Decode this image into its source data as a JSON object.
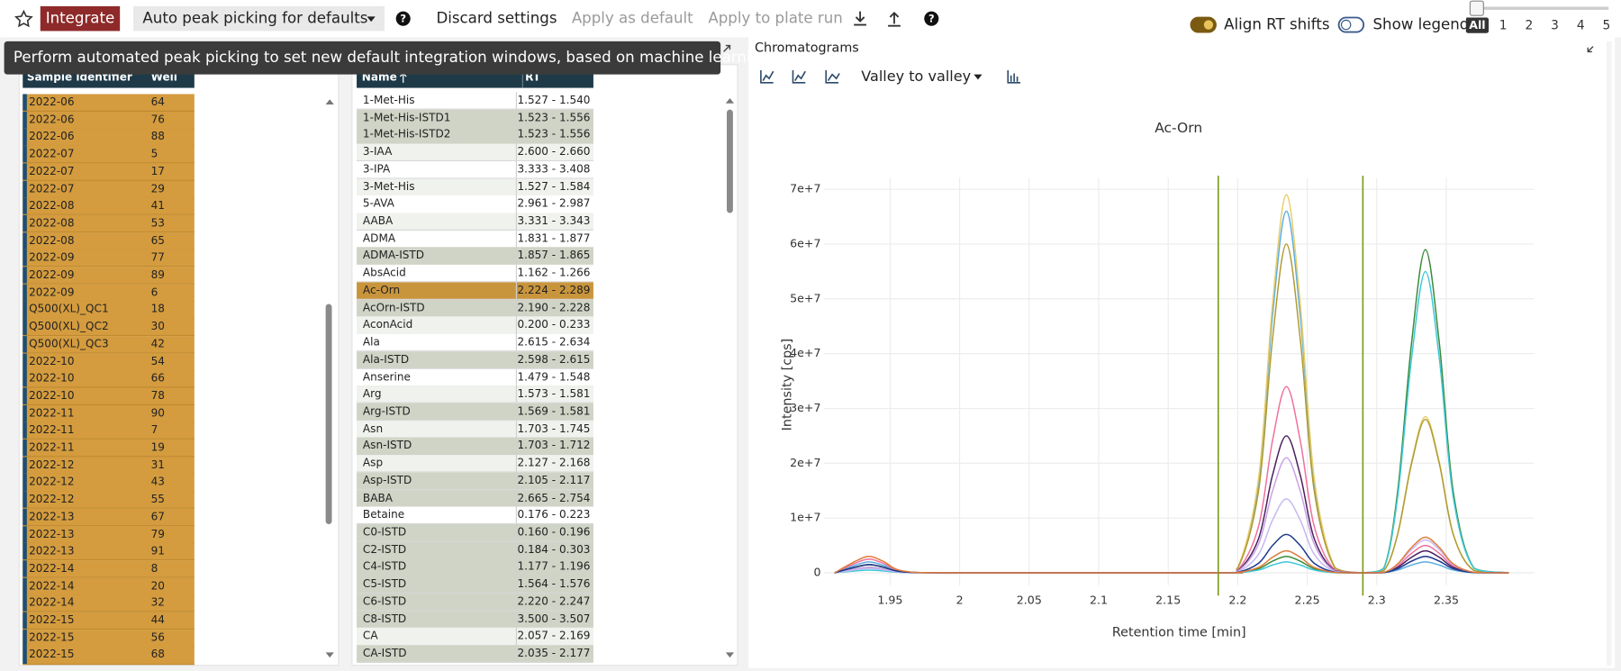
{
  "toolbar": {
    "integrate": "Integrate",
    "auto_peak_picking": "Auto peak picking for defaults",
    "discard_settings": "Discard settings",
    "apply_as_default": "Apply as default",
    "apply_to_plate_run": "Apply to plate run",
    "align_rt_shifts": {
      "label": "Align RT shifts",
      "on": true
    },
    "show_legend": {
      "label": "Show legend",
      "on": false
    },
    "range_options": [
      "All",
      "1",
      "2",
      "3",
      "4",
      "5"
    ],
    "selected_range": 0
  },
  "tooltip": "Perform automated peak picking to set new default integration windows, based on machine learning",
  "samples_table": {
    "headers": [
      "Sample identifier",
      "Well"
    ],
    "rows": [
      [
        "2022-06",
        "64"
      ],
      [
        "2022-06",
        "76"
      ],
      [
        "2022-06",
        "88"
      ],
      [
        "2022-07",
        "5"
      ],
      [
        "2022-07",
        "17"
      ],
      [
        "2022-07",
        "29"
      ],
      [
        "2022-08",
        "41"
      ],
      [
        "2022-08",
        "53"
      ],
      [
        "2022-08",
        "65"
      ],
      [
        "2022-09",
        "77"
      ],
      [
        "2022-09",
        "89"
      ],
      [
        "2022-09",
        "6"
      ],
      [
        "Q500(XL)_QC1",
        "18"
      ],
      [
        "Q500(XL)_QC2",
        "30"
      ],
      [
        "Q500(XL)_QC3",
        "42"
      ],
      [
        "2022-10",
        "54"
      ],
      [
        "2022-10",
        "66"
      ],
      [
        "2022-10",
        "78"
      ],
      [
        "2022-11",
        "90"
      ],
      [
        "2022-11",
        "7"
      ],
      [
        "2022-11",
        "19"
      ],
      [
        "2022-12",
        "31"
      ],
      [
        "2022-12",
        "43"
      ],
      [
        "2022-12",
        "55"
      ],
      [
        "2022-13",
        "67"
      ],
      [
        "2022-13",
        "79"
      ],
      [
        "2022-13",
        "91"
      ],
      [
        "2022-14",
        "8"
      ],
      [
        "2022-14",
        "20"
      ],
      [
        "2022-14",
        "32"
      ],
      [
        "2022-15",
        "44"
      ],
      [
        "2022-15",
        "56"
      ],
      [
        "2022-15",
        "68"
      ]
    ]
  },
  "compounds_table": {
    "headers": [
      "Name",
      "RT"
    ],
    "selected_row": 11,
    "rows": [
      [
        "1-Met-His",
        "1.527 - 1.540"
      ],
      [
        "1-Met-His-ISTD1",
        "1.523 - 1.556"
      ],
      [
        "1-Met-His-ISTD2",
        "1.523 - 1.556"
      ],
      [
        "3-IAA",
        "2.600 - 2.660"
      ],
      [
        "3-IPA",
        "3.333 - 3.408"
      ],
      [
        "3-Met-His",
        "1.527 - 1.584"
      ],
      [
        "5-AVA",
        "2.961 - 2.987"
      ],
      [
        "AABA",
        "3.331 - 3.343"
      ],
      [
        "ADMA",
        "1.831 - 1.877"
      ],
      [
        "ADMA-ISTD",
        "1.857 - 1.865"
      ],
      [
        "AbsAcid",
        "1.162 - 1.266"
      ],
      [
        "Ac-Orn",
        "2.224 - 2.289"
      ],
      [
        "AcOrn-ISTD",
        "2.190 - 2.228"
      ],
      [
        "AconAcid",
        "0.200 - 0.233"
      ],
      [
        "Ala",
        "2.615 - 2.634"
      ],
      [
        "Ala-ISTD",
        "2.598 - 2.615"
      ],
      [
        "Anserine",
        "1.479 - 1.548"
      ],
      [
        "Arg",
        "1.573 - 1.581"
      ],
      [
        "Arg-ISTD",
        "1.569 - 1.581"
      ],
      [
        "Asn",
        "1.703 - 1.745"
      ],
      [
        "Asn-ISTD",
        "1.703 - 1.712"
      ],
      [
        "Asp",
        "2.127 - 2.168"
      ],
      [
        "Asp-ISTD",
        "2.105 - 2.117"
      ],
      [
        "BABA",
        "2.665 - 2.754"
      ],
      [
        "Betaine",
        "0.176 - 0.223"
      ],
      [
        "C0-ISTD",
        "0.160 - 0.196"
      ],
      [
        "C2-ISTD",
        "0.184 - 0.303"
      ],
      [
        "C4-ISTD",
        "1.177 - 1.196"
      ],
      [
        "C5-ISTD",
        "1.564 - 1.576"
      ],
      [
        "C6-ISTD",
        "2.220 - 2.247"
      ],
      [
        "C8-ISTD",
        "3.500 - 3.507"
      ],
      [
        "CA",
        "2.057 - 2.169"
      ],
      [
        "CA-ISTD",
        "2.035 - 2.177"
      ]
    ]
  },
  "chromatograms_panel": {
    "title": "Chromatograms",
    "integration_mode": "Valley to valley"
  },
  "chart_data": {
    "type": "line",
    "title": "Ac-Orn",
    "x_label": "Retention time [min]",
    "y_label": "Intensity [cps]",
    "x": [
      1.91,
      1.925,
      1.935,
      1.945,
      1.96,
      2.0,
      2.185,
      2.2,
      2.215,
      2.225,
      2.235,
      2.245,
      2.255,
      2.27,
      2.29,
      2.305,
      2.315,
      2.325,
      2.335,
      2.345,
      2.355,
      2.37,
      2.395
    ],
    "series": [
      {
        "color": "#5aaee0",
        "values": [
          0,
          1400000.0,
          2000000.0,
          1400000.0,
          200000.0,
          0,
          0,
          920000.0,
          16500000.0,
          46900000.0,
          66000000.0,
          46900000.0,
          16500000.0,
          920000.0,
          0,
          28000.0,
          500000.0,
          1420000.0,
          2000000.0,
          1420000.0,
          500000.0,
          28000.0,
          0
        ]
      },
      {
        "color": "#e8cd6a",
        "values": [
          0,
          1050000.0,
          1500000.0,
          1050000.0,
          150000.0,
          0,
          0,
          970000.0,
          17300000.0,
          49000000.0,
          69000000.0,
          49000000.0,
          17300000.0,
          970000.0,
          0,
          400000.0,
          7100000.0,
          20200000.0,
          28500000.0,
          20200000.0,
          7100000.0,
          400000.0,
          0
        ]
      },
      {
        "color": "#b09a32",
        "values": [
          0,
          700000.0,
          1000000.0,
          700000.0,
          100000.0,
          0,
          0,
          840000.0,
          15000000.0,
          42600000.0,
          60000000.0,
          42600000.0,
          15000000.0,
          840000.0,
          0,
          390000.0,
          7000000.0,
          19900000.0,
          28000000.0,
          19900000.0,
          7000000.0,
          390000.0,
          0
        ]
      },
      {
        "color": "#3a8a3a",
        "values": [
          0,
          700000.0,
          1000000.0,
          700000.0,
          100000.0,
          0,
          0,
          42000.0,
          750000.0,
          2130000.0,
          3000000.0,
          2130000.0,
          750000.0,
          42000.0,
          0,
          830000.0,
          14800000.0,
          41900000.0,
          59000000.0,
          41900000.0,
          14800000.0,
          830000.0,
          0
        ]
      },
      {
        "color": "#3cc8d8",
        "values": [
          0,
          350000.0,
          500000.0,
          350000.0,
          50000.0,
          0,
          0,
          28000.0,
          500000.0,
          1420000.0,
          2000000.0,
          1420000.0,
          500000.0,
          28000.0,
          0,
          770000.0,
          13800000.0,
          39100000.0,
          55000000.0,
          39100000.0,
          13800000.0,
          770000.0,
          0
        ]
      },
      {
        "color": "#f0709c",
        "values": [
          0,
          1750000.0,
          2500000.0,
          1750000.0,
          250000.0,
          0,
          0,
          480000.0,
          8500000.0,
          24100000.0,
          34000000.0,
          24100000.0,
          8500000.0,
          480000.0,
          0,
          70000.0,
          1250000.0,
          3550000.0,
          5000000.0,
          3550000.0,
          1250000.0,
          70000.0,
          0
        ]
      },
      {
        "color": "#4a1f5e",
        "values": [
          0,
          1050000.0,
          1500000.0,
          1050000.0,
          150000.0,
          0,
          0,
          350000.0,
          6250000.0,
          17800000.0,
          25000000.0,
          17800000.0,
          6250000.0,
          350000.0,
          0,
          56000.0,
          1000000.0,
          2840000.0,
          4000000.0,
          2840000.0,
          1000000.0,
          56000.0,
          0
        ]
      },
      {
        "color": "#c9a2e6",
        "values": [
          0,
          700000.0,
          1000000.0,
          700000.0,
          100000.0,
          0,
          0,
          290000.0,
          5250000.0,
          14900000.0,
          21000000.0,
          14900000.0,
          5250000.0,
          290000.0,
          0,
          42000.0,
          750000.0,
          2130000.0,
          3000000.0,
          2130000.0,
          750000.0,
          42000.0,
          0
        ]
      },
      {
        "color": "#c6b8f2",
        "values": [
          0,
          560000.0,
          800000.0,
          560000.0,
          80000.0,
          0,
          0,
          190000.0,
          3400000.0,
          9600000.0,
          13500000.0,
          9600000.0,
          3400000.0,
          190000.0,
          0,
          84000.0,
          1500000.0,
          4260000.0,
          6000000.0,
          4260000.0,
          1500000.0,
          84000.0,
          0
        ]
      },
      {
        "color": "#1c3a8c",
        "values": [
          0,
          1050000.0,
          1500000.0,
          1050000.0,
          150000.0,
          0,
          0,
          98000.0,
          1750000.0,
          4970000.0,
          7000000.0,
          4970000.0,
          1750000.0,
          98000.0,
          0,
          42000.0,
          750000.0,
          2130000.0,
          3000000.0,
          2130000.0,
          750000.0,
          42000.0,
          0
        ]
      },
      {
        "color": "#e07b39",
        "values": [
          0,
          2100000.0,
          3000000.0,
          2100000.0,
          300000.0,
          0,
          0,
          56000.0,
          1000000.0,
          2840000.0,
          4000000.0,
          2840000.0,
          1000000.0,
          56000.0,
          0,
          91000.0,
          1630000.0,
          4620000.0,
          6500000.0,
          4620000.0,
          1630000.0,
          91000.0,
          0
        ]
      }
    ],
    "xlim": [
      1.9024,
      2.4132
    ],
    "ylim": [
      -2260000.0,
      72100000.0
    ],
    "xticks": [
      1.95,
      2,
      2.05,
      2.1,
      2.15,
      2.2,
      2.25,
      2.3,
      2.35
    ],
    "yticks": [
      0,
      {
        "value": 10000000.0,
        "label": "1e+7"
      },
      {
        "value": 20000000.0,
        "label": "2e+7"
      },
      {
        "value": 30000000.0,
        "label": "3e+7"
      },
      {
        "value": 40000000.0,
        "label": "4e+7"
      },
      {
        "value": 50000000.0,
        "label": "5e+7"
      },
      {
        "value": 60000000.0,
        "label": "6e+7"
      },
      {
        "value": 70000000.0,
        "label": "7e+7"
      }
    ],
    "grid": true,
    "vlines": [
      2.186,
      2.29
    ],
    "vline_color": "#7a9a1a"
  }
}
